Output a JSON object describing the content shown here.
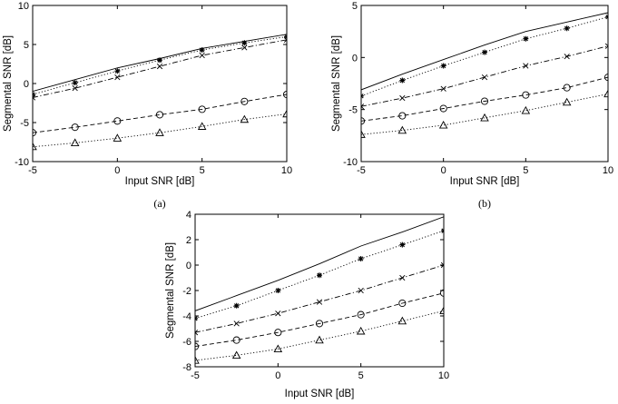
{
  "chart_data": [
    {
      "id": "a",
      "type": "line",
      "panel_label": "(a)",
      "xlabel": "Input SNR [dB]",
      "ylabel": "Segmental SNR [dB]",
      "xlim": [
        -5,
        10
      ],
      "ylim": [
        -10,
        10
      ],
      "xticks": [
        -5,
        0,
        5,
        10
      ],
      "yticks": [
        -10,
        -5,
        0,
        5,
        10
      ],
      "x": [
        -5,
        -2.5,
        0,
        2.5,
        5,
        7.5,
        10
      ],
      "series": [
        {
          "name": "solid",
          "style": "solid",
          "marker": "none",
          "values": [
            -1.0,
            0.5,
            2.0,
            3.2,
            4.5,
            5.4,
            6.3
          ]
        },
        {
          "name": "star",
          "style": "dotted",
          "marker": "star",
          "values": [
            -1.4,
            0.1,
            1.6,
            3.0,
            4.3,
            5.2,
            6.0
          ]
        },
        {
          "name": "cross",
          "style": "dashdot",
          "marker": "x",
          "values": [
            -1.8,
            -0.6,
            0.8,
            2.2,
            3.6,
            4.6,
            5.6
          ]
        },
        {
          "name": "circle",
          "style": "dashed",
          "marker": "circle",
          "values": [
            -6.3,
            -5.6,
            -4.8,
            -4.0,
            -3.3,
            -2.3,
            -1.4
          ]
        },
        {
          "name": "triangle",
          "style": "dotted",
          "marker": "triangle",
          "values": [
            -8.1,
            -7.6,
            -7.0,
            -6.3,
            -5.5,
            -4.6,
            -3.9
          ]
        }
      ]
    },
    {
      "id": "b",
      "type": "line",
      "panel_label": "(b)",
      "xlabel": "Input SNR [dB]",
      "ylabel": "Segmental SNR [dB]",
      "xlim": [
        -5,
        10
      ],
      "ylim": [
        -10,
        5
      ],
      "xticks": [
        -5,
        0,
        5,
        10
      ],
      "yticks": [
        -10,
        -5,
        0,
        5
      ],
      "x": [
        -5,
        -2.5,
        0,
        2.5,
        5,
        7.5,
        10
      ],
      "series": [
        {
          "name": "solid",
          "style": "solid",
          "marker": "none",
          "values": [
            -3.1,
            -1.6,
            -0.2,
            1.2,
            2.5,
            3.4,
            4.3
          ]
        },
        {
          "name": "star",
          "style": "dotted",
          "marker": "star",
          "values": [
            -3.7,
            -2.2,
            -0.8,
            0.5,
            1.8,
            2.8,
            3.9
          ]
        },
        {
          "name": "cross",
          "style": "dashdot",
          "marker": "x",
          "values": [
            -4.7,
            -3.9,
            -3.0,
            -1.9,
            -0.8,
            0.1,
            1.1
          ]
        },
        {
          "name": "circle",
          "style": "dashed",
          "marker": "circle",
          "values": [
            -6.1,
            -5.6,
            -4.9,
            -4.2,
            -3.6,
            -2.9,
            -1.9
          ]
        },
        {
          "name": "triangle",
          "style": "dotted",
          "marker": "triangle",
          "values": [
            -7.4,
            -7.0,
            -6.5,
            -5.8,
            -5.1,
            -4.3,
            -3.5
          ]
        }
      ]
    },
    {
      "id": "c",
      "type": "line",
      "panel_label": "",
      "xlabel": "Input SNR [dB]",
      "ylabel": "Segmental SNR [dB]",
      "xlim": [
        -5,
        10
      ],
      "ylim": [
        -8,
        4
      ],
      "xticks": [
        -5,
        0,
        5,
        10
      ],
      "yticks": [
        -8,
        -6,
        -4,
        -2,
        0,
        2,
        4
      ],
      "x": [
        -5,
        -2.5,
        0,
        2.5,
        5,
        7.5,
        10
      ],
      "series": [
        {
          "name": "solid",
          "style": "solid",
          "marker": "none",
          "values": [
            -3.6,
            -2.4,
            -1.2,
            0.1,
            1.5,
            2.6,
            3.8
          ]
        },
        {
          "name": "star",
          "style": "dotted",
          "marker": "star",
          "values": [
            -4.2,
            -3.2,
            -2.0,
            -0.8,
            0.5,
            1.6,
            2.7
          ]
        },
        {
          "name": "cross",
          "style": "dashdot",
          "marker": "x",
          "values": [
            -5.3,
            -4.6,
            -3.8,
            -2.9,
            -2.0,
            -1.0,
            0.0
          ]
        },
        {
          "name": "circle",
          "style": "dashed",
          "marker": "circle",
          "values": [
            -6.4,
            -5.9,
            -5.3,
            -4.6,
            -3.9,
            -3.0,
            -2.2
          ]
        },
        {
          "name": "triangle",
          "style": "dotted",
          "marker": "triangle",
          "values": [
            -7.5,
            -7.1,
            -6.6,
            -5.9,
            -5.2,
            -4.4,
            -3.6
          ]
        }
      ]
    }
  ]
}
